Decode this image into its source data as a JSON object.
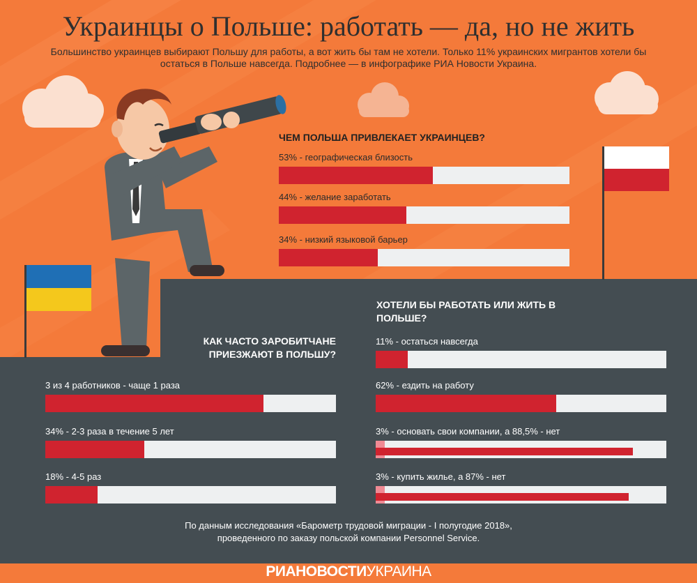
{
  "title": "Украинцы о Польше: работать — да, но не жить",
  "subtitle": "Большинство украинцев выбирают Польшу для работы, а вот жить бы там не хотели. Только 11% украинских мигрантов хотели бы остаться в Польше навсегда. Подробнее — в инфографике РИА Новости Украина.",
  "colors": {
    "background": "#f47a3a",
    "dark_panel": "#444d52",
    "bar_fill": "#d0232f",
    "bar_fill_secondary": "#f08a94",
    "bar_track": "#eef0f1"
  },
  "chart_data": [
    {
      "type": "bar",
      "orientation": "horizontal",
      "title": "ЧЕМ ПОЛЬША ПРИВЛЕКАЕТ УКРАИНЦЕВ?",
      "xlim": [
        0,
        100
      ],
      "bars": [
        {
          "label": "53% - географическая близость",
          "value": 53
        },
        {
          "label": "44% -  желание заработать",
          "value": 44
        },
        {
          "label": "34% - низкий языковой барьер",
          "value": 34
        }
      ]
    },
    {
      "type": "bar",
      "orientation": "horizontal",
      "title": "КАК ЧАСТО ЗАРОБИТЧАНЕ ПРИЕЗЖАЮТ В ПОЛЬШУ?",
      "xlim": [
        0,
        100
      ],
      "bars": [
        {
          "label": "3 из 4 работников - чаще 1 раза",
          "value": 75
        },
        {
          "label": "34% -  2-3 раза в течение 5 лет",
          "value": 34
        },
        {
          "label": "18% - 4-5 раз",
          "value": 18
        }
      ]
    },
    {
      "type": "bar",
      "orientation": "horizontal",
      "title": "ХОТЕЛИ БЫ РАБОТАТЬ ИЛИ ЖИТЬ В ПОЛЬШЕ?",
      "xlim": [
        0,
        100
      ],
      "bars": [
        {
          "label": "11% - остаться навсегда",
          "value": 11
        },
        {
          "label": "62% - ездить на работу",
          "value": 62
        },
        {
          "label": "3% - основать свои компании, а 88,5% - нет",
          "value": 3,
          "secondary_value": 88.5
        },
        {
          "label": "3% - купить жилье, а 87% - нет",
          "value": 3,
          "secondary_value": 87
        }
      ]
    }
  ],
  "footnote": {
    "line1": "По данным исследования «Барометр трудовой миграции - I полугодие 2018»,",
    "line2": "проведенного по заказу польской компании Personnel Service."
  },
  "logo": {
    "bold": "РИАНОВОСТИ",
    "light": "УКРАИНА"
  }
}
